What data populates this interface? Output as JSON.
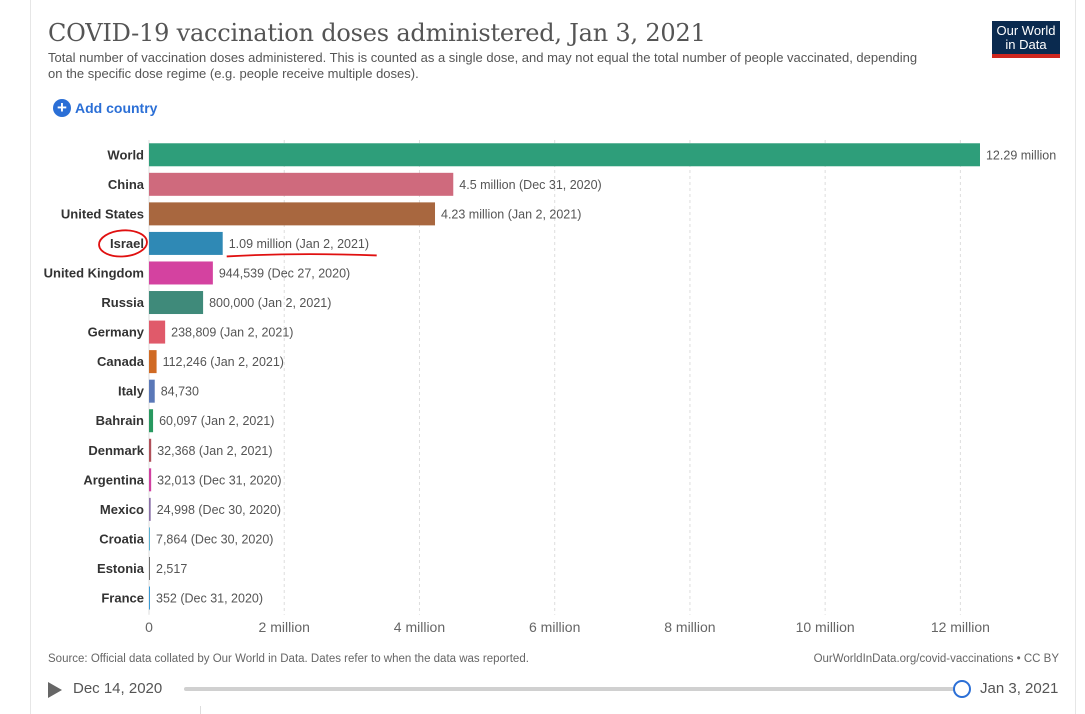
{
  "header": {
    "title": "COVID-19 vaccination doses administered, Jan 3, 2021",
    "subtitle": "Total number of vaccination doses administered. This is counted as a single dose, and may not equal the total number of people vaccinated, depending on the specific dose regime (e.g. people receive multiple doses).",
    "logo_line1": "Our World",
    "logo_line2": "in Data"
  },
  "controls": {
    "add_country_label": "Add country",
    "add_icon": "plus-circle-icon"
  },
  "chart_data": {
    "type": "bar",
    "orientation": "horizontal",
    "title": "COVID-19 vaccination doses administered, Jan 3, 2021",
    "xlim": [
      0,
      13000000
    ],
    "x_ticks": [
      0,
      2000000,
      4000000,
      6000000,
      8000000,
      10000000,
      12000000
    ],
    "x_tick_labels": [
      "0",
      "2 million",
      "4 million",
      "6 million",
      "8 million",
      "10 million",
      "12 million"
    ],
    "grid": true,
    "categories": [
      "World",
      "China",
      "United States",
      "Israel",
      "United Kingdom",
      "Russia",
      "Germany",
      "Canada",
      "Italy",
      "Bahrain",
      "Denmark",
      "Argentina",
      "Mexico",
      "Croatia",
      "Estonia",
      "France"
    ],
    "values": [
      12290000,
      4500000,
      4230000,
      1090000,
      944539,
      800000,
      238809,
      112246,
      84730,
      60097,
      32368,
      32013,
      24998,
      7864,
      2517,
      352
    ],
    "labels": [
      "12.29 million",
      "4.5 million (Dec 31, 2020)",
      "4.23 million (Jan 2, 2021)",
      "1.09 million (Jan 2, 2021)",
      "944,539 (Dec 27, 2020)",
      "800,000 (Jan 2, 2021)",
      "238,809 (Jan 2, 2021)",
      "112,246 (Jan 2, 2021)",
      "84,730",
      "60,097 (Jan 2, 2021)",
      "32,368 (Jan 2, 2021)",
      "32,013 (Dec 31, 2020)",
      "24,998 (Dec 30, 2020)",
      "7,864 (Dec 30, 2020)",
      "2,517",
      "352 (Dec 31, 2020)"
    ],
    "colors": [
      "#2e9e7a",
      "#cf6a7d",
      "#a8673f",
      "#2f89b5",
      "#d442a0",
      "#3f8a7a",
      "#e05a6a",
      "#d06a24",
      "#5a78b8",
      "#289960",
      "#b0505a",
      "#d040a0",
      "#8a6fa8",
      "#5ab0d0",
      "#707070",
      "#3a9ad4"
    ],
    "highlight": {
      "category": "Israel",
      "annotation": "red hand-drawn circle and underline"
    }
  },
  "footer": {
    "source": "Source: Official data collated by Our World in Data. Dates refer to when the data was reported.",
    "link": "OurWorldInData.org/covid-vaccinations • CC BY"
  },
  "timeline": {
    "start_date": "Dec 14, 2020",
    "end_date": "Jan 3, 2021",
    "play_icon": "play-icon",
    "position": 1.0
  }
}
